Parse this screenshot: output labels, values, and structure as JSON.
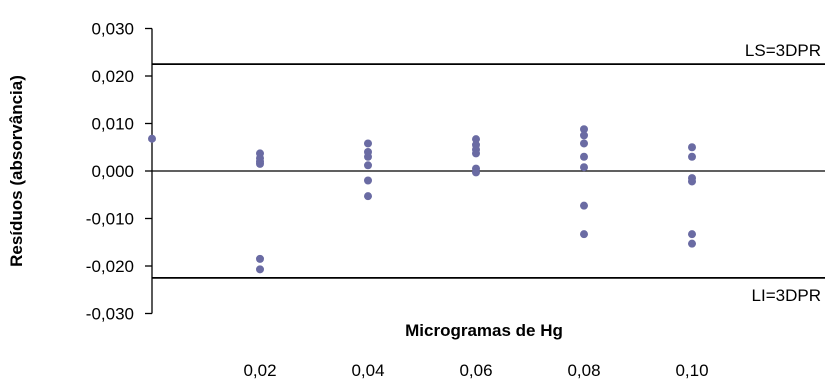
{
  "chart_data": {
    "type": "scatter",
    "xlabel": "Microgramas de Hg",
    "ylabel": "Resíduos (absorvância)",
    "xlim": [
      0,
      0.12
    ],
    "ylim": [
      -0.03,
      0.03
    ],
    "x_ticks": [
      {
        "value": 0.02,
        "label": "0,02"
      },
      {
        "value": 0.04,
        "label": "0,04"
      },
      {
        "value": 0.06,
        "label": "0,06"
      },
      {
        "value": 0.08,
        "label": "0,08"
      },
      {
        "value": 0.1,
        "label": "0,10"
      }
    ],
    "y_ticks": [
      {
        "value": 0.03,
        "label": "0,030"
      },
      {
        "value": 0.02,
        "label": "0,020"
      },
      {
        "value": 0.01,
        "label": "0,010"
      },
      {
        "value": 0.0,
        "label": "0,000"
      },
      {
        "value": -0.01,
        "label": "-0,010"
      },
      {
        "value": -0.02,
        "label": "-0,020"
      },
      {
        "value": -0.03,
        "label": "-0,030"
      }
    ],
    "reference_lines": [
      {
        "value": 0.0225,
        "label": "LS=3DPR"
      },
      {
        "value": -0.0225,
        "label": "LI=3DPR"
      }
    ],
    "grid": false,
    "marker_color": "#6a6ba3",
    "points": [
      {
        "x": 0.0,
        "y": 0.0068
      },
      {
        "x": 0.02,
        "y": 0.0037
      },
      {
        "x": 0.02,
        "y": 0.0027
      },
      {
        "x": 0.02,
        "y": 0.002
      },
      {
        "x": 0.02,
        "y": 0.0015
      },
      {
        "x": 0.02,
        "y": -0.0185
      },
      {
        "x": 0.02,
        "y": -0.0207
      },
      {
        "x": 0.04,
        "y": 0.0058
      },
      {
        "x": 0.04,
        "y": 0.004
      },
      {
        "x": 0.04,
        "y": 0.003
      },
      {
        "x": 0.04,
        "y": 0.0012
      },
      {
        "x": 0.04,
        "y": -0.002
      },
      {
        "x": 0.04,
        "y": -0.0053
      },
      {
        "x": 0.06,
        "y": 0.0067
      },
      {
        "x": 0.06,
        "y": 0.0055
      },
      {
        "x": 0.06,
        "y": 0.0045
      },
      {
        "x": 0.06,
        "y": 0.0037
      },
      {
        "x": 0.06,
        "y": 0.0005
      },
      {
        "x": 0.06,
        "y": -0.0003
      },
      {
        "x": 0.08,
        "y": 0.0088
      },
      {
        "x": 0.08,
        "y": 0.0075
      },
      {
        "x": 0.08,
        "y": 0.0058
      },
      {
        "x": 0.08,
        "y": 0.003
      },
      {
        "x": 0.08,
        "y": 0.0008
      },
      {
        "x": 0.08,
        "y": -0.0073
      },
      {
        "x": 0.08,
        "y": -0.0133
      },
      {
        "x": 0.1,
        "y": 0.005
      },
      {
        "x": 0.1,
        "y": 0.003
      },
      {
        "x": 0.1,
        "y": -0.0015
      },
      {
        "x": 0.1,
        "y": -0.0022
      },
      {
        "x": 0.1,
        "y": -0.0133
      },
      {
        "x": 0.1,
        "y": -0.0153
      }
    ]
  }
}
